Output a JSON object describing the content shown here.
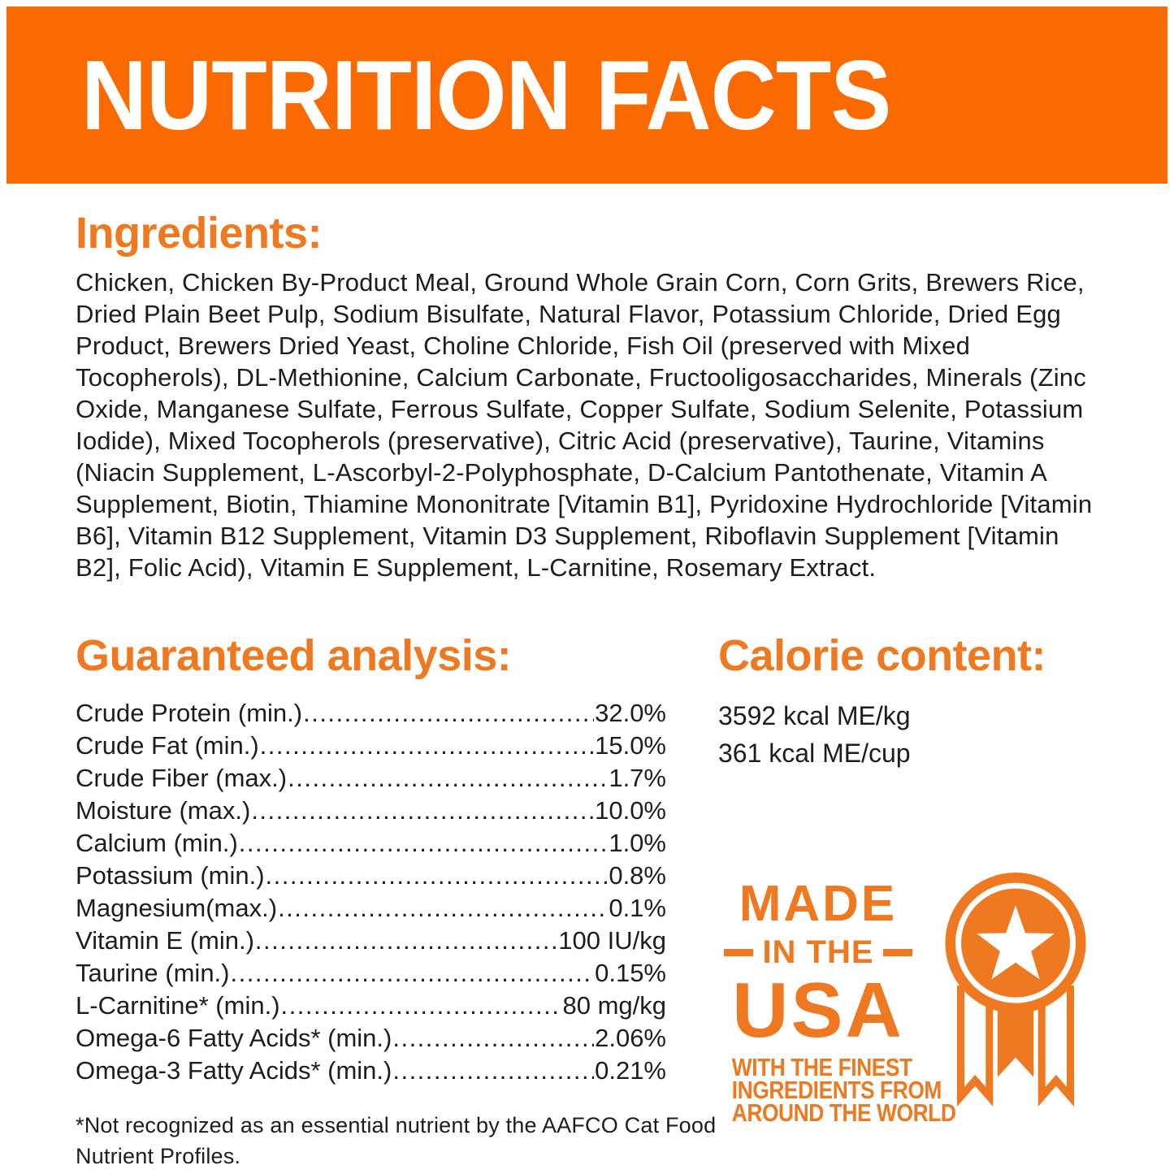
{
  "colors": {
    "band_orange": "#FA6A00",
    "accent_orange": "#EF7920",
    "text_dark": "#1D1D1D",
    "paper_white": "#FFFFFF",
    "star_white": "#FFFFFF"
  },
  "header": {
    "title": "NUTRITION FACTS"
  },
  "ingredients": {
    "heading": "Ingredients:",
    "text": "Chicken, Chicken By-Product Meal, Ground Whole Grain Corn, Corn Grits, Brewers Rice, Dried Plain Beet Pulp, Sodium Bisulfate, Natural Flavor, Potassium Chloride, Dried Egg Product, Brewers Dried Yeast, Choline Chloride, Fish Oil (preserved with Mixed Tocopherols), DL-Methionine, Calcium Carbonate, Fructooligosaccharides, Minerals (Zinc Oxide, Manganese Sulfate, Ferrous Sulfate, Copper Sulfate, Sodium Selenite, Potassium Iodide), Mixed Tocopherols (preservative), Citric Acid (preservative), Taurine, Vitamins (Niacin Supplement, L-Ascorbyl-2-Polyphosphate, D-Calcium Pantothenate, Vitamin A Supplement, Biotin, Thiamine Mononitrate [Vitamin B1], Pyridoxine Hydrochloride [Vitamin B6], Vitamin B12 Supplement, Vitamin D3 Supplement, Riboflavin Supplement [Vitamin B2], Folic Acid), Vitamin E Supplement, L-Carnitine, Rosemary Extract."
  },
  "guaranteed_analysis": {
    "heading": "Guaranteed analysis:",
    "rows": [
      {
        "label": "Crude Protein (min.)",
        "value": "32.0%"
      },
      {
        "label": "Crude Fat (min.)",
        "value": "15.0%"
      },
      {
        "label": "Crude Fiber (max.)",
        "value": "1.7%"
      },
      {
        "label": "Moisture (max.)",
        "value": "10.0%"
      },
      {
        "label": "Calcium (min.)",
        "value": "1.0%"
      },
      {
        "label": "Potassium (min.)",
        "value": "0.8%"
      },
      {
        "label": "Magnesium(max.)",
        "value": "0.1%"
      },
      {
        "label": "Vitamin E (min.)",
        "value": "100 IU/kg"
      },
      {
        "label": "Taurine (min.)",
        "value": "0.15%"
      },
      {
        "label": "L-Carnitine* (min.)",
        "value": "80 mg/kg"
      },
      {
        "label": "Omega-6 Fatty Acids* (min.)",
        "value": "2.06%"
      },
      {
        "label": "Omega-3 Fatty Acids* (min.)",
        "value": "0.21%"
      }
    ]
  },
  "calorie_content": {
    "heading": "Calorie content:",
    "lines": [
      {
        "text": "3592 kcal ME/kg"
      },
      {
        "text": "361 kcal ME/cup"
      }
    ]
  },
  "made_in_usa": {
    "word1": "MADE",
    "word2": "IN THE",
    "word3": "USA",
    "sub_lines": [
      {
        "text": "WITH THE FINEST"
      },
      {
        "text": "INGREDIENTS FROM"
      },
      {
        "text": "AROUND THE WORLD"
      }
    ],
    "icon": "award-ribbon-icon"
  },
  "footnote": {
    "text": "*Not recognized as an essential nutrient by the AAFCO Cat Food Nutrient Profiles."
  }
}
